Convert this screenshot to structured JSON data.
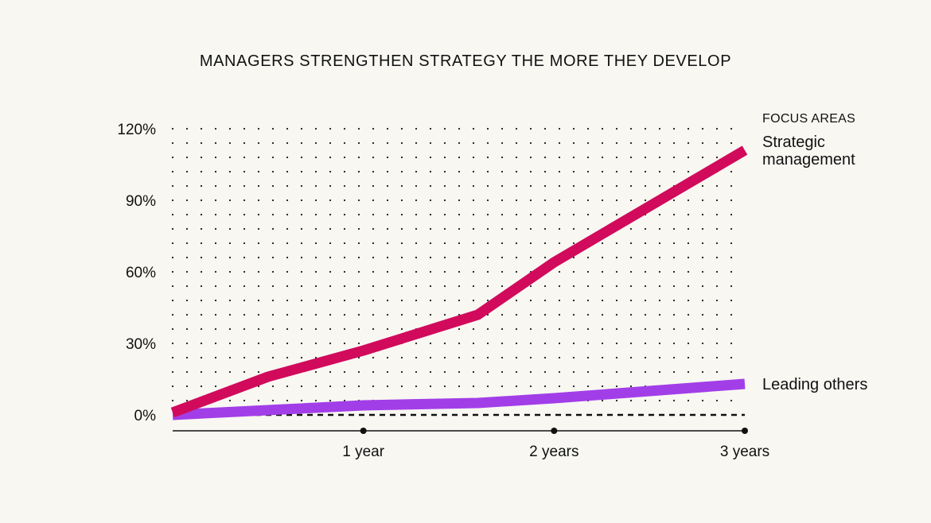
{
  "chart_data": {
    "type": "line",
    "title": "MANAGERS STRENGTHEN STRATEGY THE MORE THEY DEVELOP",
    "xlabel": "",
    "ylabel": "",
    "x_range": [
      0,
      3
    ],
    "ylim": [
      0,
      120
    ],
    "y_ticks": [
      0,
      30,
      60,
      90,
      120
    ],
    "y_tick_labels": [
      "0%",
      "30%",
      "60%",
      "90%",
      "120%"
    ],
    "x_ticks": [
      1,
      2,
      3
    ],
    "x_tick_labels": [
      "1 year",
      "2 years",
      "3 years"
    ],
    "grid": "dotted",
    "baseline_value": 0,
    "legend_title": "FOCUS AREAS",
    "series": [
      {
        "name": "Strategic management",
        "label_lines": [
          "Strategic",
          "management"
        ],
        "color": "#d10a5c",
        "x": [
          0,
          0.5,
          1,
          1.6,
          2,
          3
        ],
        "y": [
          1,
          16,
          27,
          42,
          64,
          111
        ]
      },
      {
        "name": "Leading others",
        "label_lines": [
          "Leading others"
        ],
        "color": "#a23ee8",
        "x": [
          0,
          0.5,
          1,
          1.6,
          2,
          3
        ],
        "y": [
          0,
          2,
          4,
          5,
          7,
          13
        ]
      }
    ]
  }
}
